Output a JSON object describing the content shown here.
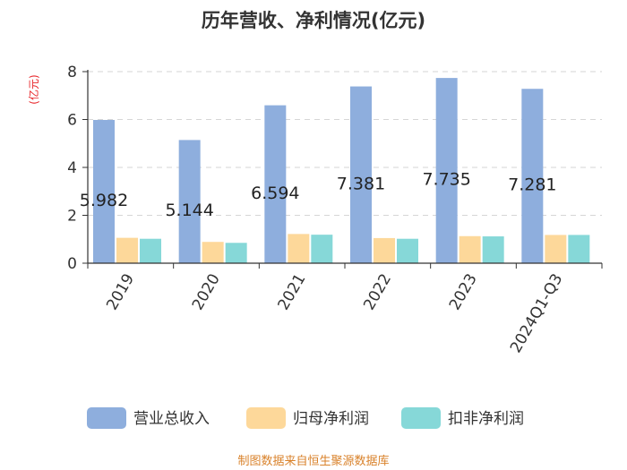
{
  "title": "历年营收、净利情况(亿元)",
  "unit_label": "(亿元)",
  "footer": "制图数据来自恒生聚源数据库",
  "chart_data": {
    "type": "bar",
    "categories": [
      "2019",
      "2020",
      "2021",
      "2022",
      "2023",
      "2024Q1-Q3"
    ],
    "series": [
      {
        "name": "营业总收入",
        "color": "#8eaedd",
        "values": [
          5.982,
          5.144,
          6.594,
          7.381,
          7.735,
          7.281
        ]
      },
      {
        "name": "归母净利润",
        "color": "#fdd89a",
        "values": [
          1.06,
          0.89,
          1.22,
          1.05,
          1.13,
          1.18
        ]
      },
      {
        "name": "扣非净利润",
        "color": "#86d8d8",
        "values": [
          1.02,
          0.85,
          1.19,
          1.02,
          1.12,
          1.18
        ]
      }
    ],
    "data_labels": [
      "5.982",
      "5.144",
      "6.594",
      "7.381",
      "7.735",
      "7.281"
    ],
    "yticks": [
      "0",
      "2",
      "4",
      "6",
      "8"
    ],
    "ylim": [
      0,
      8
    ],
    "grid": true,
    "legend_position": "bottom"
  }
}
